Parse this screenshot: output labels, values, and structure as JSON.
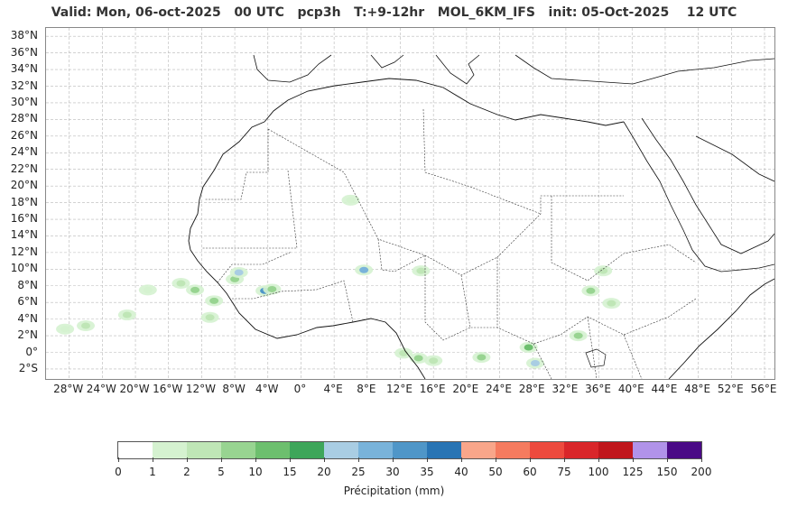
{
  "title": "Valid: Mon, 06-oct-2025   00 UTC   pcp3h   T:+9-12hr   MOL_6KM_IFS   init: 05-Oct-2025    12 UTC",
  "map": {
    "lat_labels": [
      "38°N",
      "36°N",
      "34°N",
      "32°N",
      "30°N",
      "28°N",
      "26°N",
      "24°N",
      "22°N",
      "20°N",
      "18°N",
      "16°N",
      "14°N",
      "12°N",
      "10°N",
      "8°N",
      "6°N",
      "4°N",
      "2°N",
      "0°",
      "2°S"
    ],
    "lon_labels": [
      "28°W",
      "24°W",
      "20°W",
      "16°W",
      "12°W",
      "8°W",
      "4°W",
      "0°",
      "4°E",
      "8°E",
      "12°E",
      "16°E",
      "20°E",
      "24°E",
      "28°E",
      "32°E",
      "36°E",
      "40°E",
      "44°E",
      "48°E",
      "52°E",
      "56°E"
    ],
    "lat_range": [
      -3.2,
      39
    ],
    "lon_range": [
      -30.8,
      57.2
    ],
    "grid": true,
    "precip_patches": [
      {
        "lon": -14.5,
        "lat": 8.3,
        "level": 2
      },
      {
        "lon": -12.8,
        "lat": 7.5,
        "level": 3
      },
      {
        "lon": -10.5,
        "lat": 6.2,
        "level": 3
      },
      {
        "lon": -8.0,
        "lat": 8.8,
        "level": 3
      },
      {
        "lon": -7.5,
        "lat": 9.6,
        "level": 6
      },
      {
        "lon": -4.4,
        "lat": 7.4,
        "level": 8
      },
      {
        "lon": -3.5,
        "lat": 7.6,
        "level": 3
      },
      {
        "lon": -11.0,
        "lat": 4.2,
        "level": 2
      },
      {
        "lon": -21.0,
        "lat": 4.5,
        "level": 2
      },
      {
        "lon": -26.0,
        "lat": 3.2,
        "level": 2
      },
      {
        "lon": -28.5,
        "lat": 2.8,
        "level": 1
      },
      {
        "lon": -18.5,
        "lat": 7.5,
        "level": 1
      },
      {
        "lon": 7.6,
        "lat": 9.9,
        "level": 7
      },
      {
        "lon": 14.5,
        "lat": 9.8,
        "level": 2
      },
      {
        "lon": 6.0,
        "lat": 18.3,
        "level": 1
      },
      {
        "lon": 14.2,
        "lat": -0.7,
        "level": 3
      },
      {
        "lon": 12.4,
        "lat": -0.1,
        "level": 2
      },
      {
        "lon": 16.0,
        "lat": -1.0,
        "level": 2
      },
      {
        "lon": 21.8,
        "lat": -0.6,
        "level": 3
      },
      {
        "lon": 27.5,
        "lat": 0.6,
        "level": 4
      },
      {
        "lon": 28.3,
        "lat": -1.3,
        "level": 6
      },
      {
        "lon": 33.5,
        "lat": 2.0,
        "level": 3
      },
      {
        "lon": 35.0,
        "lat": 7.4,
        "level": 3
      },
      {
        "lon": 36.5,
        "lat": 9.8,
        "level": 2
      },
      {
        "lon": 37.5,
        "lat": 5.9,
        "level": 2
      }
    ]
  },
  "colorbar": {
    "colors": [
      "#ffffff",
      "#d5f2d0",
      "#bfe6b6",
      "#98d491",
      "#6dbf6e",
      "#3ea65a",
      "#a9cde3",
      "#79b3da",
      "#4f96c8",
      "#2874b4",
      "#f8a68a",
      "#f57b5f",
      "#ed4a3e",
      "#d9262a",
      "#c0161c",
      "#b193e9",
      "#4a0a86"
    ],
    "ticks": [
      "0",
      "1",
      "2",
      "5",
      "10",
      "15",
      "20",
      "25",
      "30",
      "35",
      "40",
      "50",
      "60",
      "75",
      "100",
      "125",
      "150",
      "200"
    ],
    "label": "Précipitation (mm)"
  }
}
